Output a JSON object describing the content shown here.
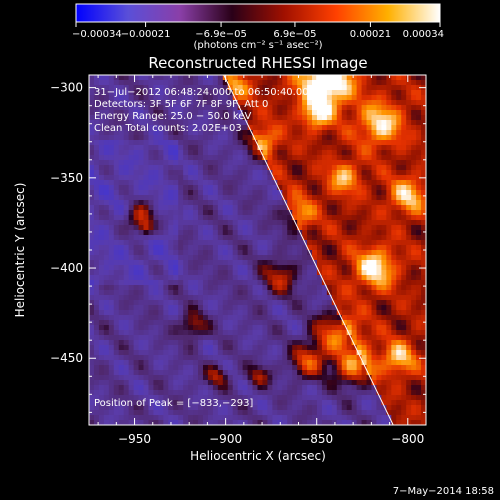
{
  "chart_data": {
    "type": "heatmap",
    "title": "Reconstructed RHESSI Image",
    "xlabel": "Heliocentric X (arcsec)",
    "ylabel": "Heliocentric Y (arcsec)",
    "xlim": [
      -975,
      -790
    ],
    "ylim": [
      -487,
      -293
    ],
    "x_ticks": [
      {
        "value": -950,
        "label": "−950"
      },
      {
        "value": -900,
        "label": "−900"
      },
      {
        "value": -850,
        "label": "−850"
      },
      {
        "value": -800,
        "label": "−800"
      }
    ],
    "y_ticks": [
      {
        "value": -300,
        "label": "−300"
      },
      {
        "value": -350,
        "label": "−350"
      },
      {
        "value": -400,
        "label": "−400"
      },
      {
        "value": -450,
        "label": "−450"
      }
    ],
    "colorbar": {
      "range": [
        -0.00034,
        0.00034
      ],
      "unit_label": "(photons cm⁻² s⁻¹ asec⁻²)",
      "ticks": [
        {
          "value": -0.00034,
          "label": "−0.00034"
        },
        {
          "value": -0.00021,
          "label": "−0.00021"
        },
        {
          "value": -6.9e-05,
          "label": "−6.9e−05"
        },
        {
          "value": 6.9e-05,
          "label": "6.9e−05"
        },
        {
          "value": 0.00021,
          "label": "0.00021"
        },
        {
          "value": 0.00034,
          "label": "0.00034"
        }
      ],
      "colors": [
        "#0000ff",
        "#5a4fd8",
        "#8a3fa8",
        "#2a0018",
        "#a01000",
        "#ff4000",
        "#ffb000",
        "#ffffff"
      ]
    },
    "annotations": [
      "31−Jul−2012 06:48:24.000 to 06:50:40.000",
      "Detectors: 3F 5F 6F 7F 8F 9F, Att 0",
      "Energy Range: 25.0 − 50.0 keV",
      "Clean    Total counts: 2.02E+03"
    ],
    "peak_label": "Position of Peak = [−833,−293]",
    "limb_line": {
      "from": [
        -901,
        -293
      ],
      "to": [
        -808,
        -487
      ]
    },
    "timestamp": "7−May−2014 18:58"
  }
}
